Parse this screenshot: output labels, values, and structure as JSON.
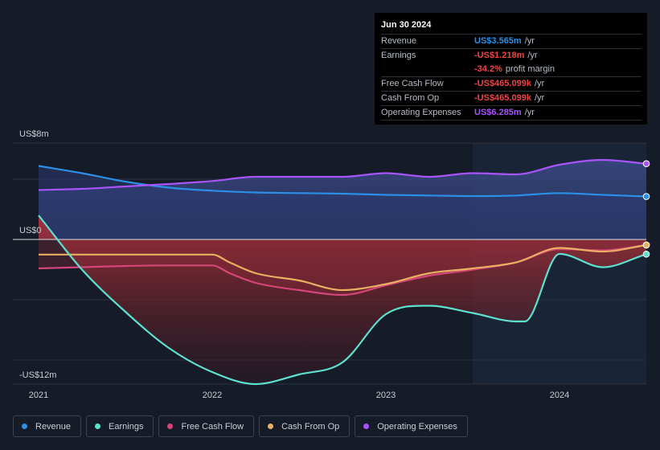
{
  "chart_data": {
    "type": "area",
    "y_label_top": "US$8m",
    "y_label_zero": "US$0",
    "y_label_bottom": "-US$12m",
    "ylim": [
      -12,
      8
    ],
    "xlim": [
      2021.0,
      2024.5
    ],
    "x_ticks": [
      {
        "value": 2021.0,
        "label": "2021"
      },
      {
        "value": 2022.0,
        "label": "2022"
      },
      {
        "value": 2023.0,
        "label": "2023"
      },
      {
        "value": 2024.0,
        "label": "2024"
      }
    ],
    "highlight_start": 2023.5,
    "series": [
      {
        "key": "revenue",
        "name": "Revenue",
        "color": "#2b8fe6",
        "x": [
          2021.0,
          2021.25,
          2021.5,
          2021.75,
          2022.0,
          2022.25,
          2022.5,
          2022.75,
          2023.0,
          2023.25,
          2023.5,
          2023.75,
          2024.0,
          2024.25,
          2024.5
        ],
        "values": [
          6.1,
          5.5,
          4.8,
          4.3,
          4.05,
          3.9,
          3.85,
          3.8,
          3.7,
          3.65,
          3.6,
          3.65,
          3.85,
          3.7,
          3.565
        ]
      },
      {
        "key": "earnings",
        "name": "Earnings",
        "color": "#5fe0cf",
        "x": [
          2021.0,
          2021.25,
          2021.5,
          2021.75,
          2022.0,
          2022.25,
          2022.5,
          2022.75,
          2023.0,
          2023.25,
          2023.5,
          2023.75,
          2023.8,
          2024.0,
          2024.25,
          2024.5
        ],
        "values": [
          2.0,
          -2.5,
          -6.0,
          -9.0,
          -11.0,
          -12.0,
          -11.2,
          -10.2,
          -6.2,
          -5.5,
          -6.1,
          -6.8,
          -6.8,
          -1.2,
          -2.3,
          -1.218
        ]
      },
      {
        "key": "fcf",
        "name": "Free Cash Flow",
        "color": "#d6457a",
        "x": [
          2021.0,
          2021.25,
          2021.5,
          2021.75,
          2022.0,
          2022.1,
          2022.25,
          2022.5,
          2022.75,
          2023.0,
          2023.25,
          2023.5,
          2023.75,
          2024.0,
          2024.25,
          2024.5
        ],
        "values": [
          -2.4,
          -2.3,
          -2.2,
          -2.15,
          -2.15,
          -2.8,
          -3.6,
          -4.2,
          -4.6,
          -3.8,
          -3.0,
          -2.5,
          -1.9,
          -0.8,
          -0.9,
          -0.465
        ]
      },
      {
        "key": "cfo",
        "name": "Cash From Op",
        "color": "#e8b060",
        "x": [
          2021.0,
          2021.25,
          2021.5,
          2021.75,
          2022.0,
          2022.1,
          2022.25,
          2022.5,
          2022.75,
          2023.0,
          2023.25,
          2023.5,
          2023.75,
          2024.0,
          2024.25,
          2024.5
        ],
        "values": [
          -1.25,
          -1.25,
          -1.25,
          -1.25,
          -1.25,
          -1.9,
          -2.8,
          -3.4,
          -4.2,
          -3.7,
          -2.8,
          -2.4,
          -1.9,
          -0.7,
          -1.0,
          -0.465
        ]
      },
      {
        "key": "opex",
        "name": "Operating Expenses",
        "color": "#a855f7",
        "x": [
          2021.0,
          2021.25,
          2021.5,
          2021.75,
          2022.0,
          2022.25,
          2022.5,
          2022.75,
          2023.0,
          2023.25,
          2023.5,
          2023.75,
          2024.0,
          2024.25,
          2024.5
        ],
        "values": [
          4.1,
          4.2,
          4.4,
          4.6,
          4.85,
          5.2,
          5.2,
          5.2,
          5.5,
          5.2,
          5.5,
          5.4,
          6.2,
          6.6,
          6.285
        ]
      }
    ]
  },
  "tooltip": {
    "date": "Jun 30 2024",
    "rows": [
      {
        "label": "Revenue",
        "value": "US$3.565m",
        "unit": "/yr",
        "color": "#2b8fe6"
      },
      {
        "label": "Earnings",
        "value": "-US$1.218m",
        "unit": "/yr",
        "color": "#ef4444"
      },
      {
        "label": "",
        "value": "-34.2%",
        "unit": "profit margin",
        "color": "#ef4444",
        "sub": true
      },
      {
        "label": "Free Cash Flow",
        "value": "-US$465.099k",
        "unit": "/yr",
        "color": "#ef4444"
      },
      {
        "label": "Cash From Op",
        "value": "-US$465.099k",
        "unit": "/yr",
        "color": "#ef4444"
      },
      {
        "label": "Operating Expenses",
        "value": "US$6.285m",
        "unit": "/yr",
        "color": "#a855f7"
      }
    ]
  },
  "legend": [
    {
      "label": "Revenue",
      "color": "#2b8fe6"
    },
    {
      "label": "Earnings",
      "color": "#5fe0cf"
    },
    {
      "label": "Free Cash Flow",
      "color": "#d6457a"
    },
    {
      "label": "Cash From Op",
      "color": "#e8b060"
    },
    {
      "label": "Operating Expenses",
      "color": "#a855f7"
    }
  ]
}
